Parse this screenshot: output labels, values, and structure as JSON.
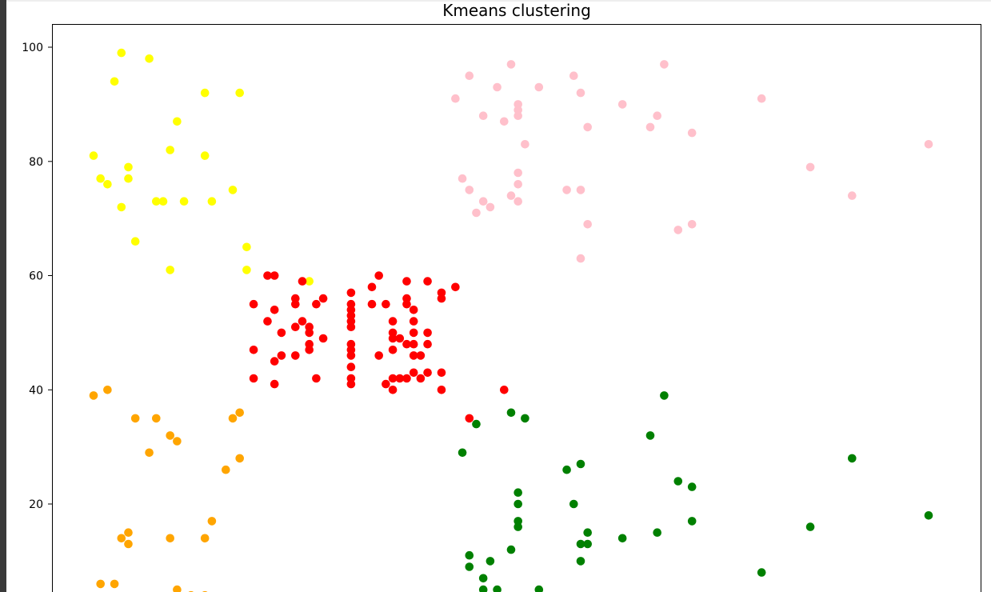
{
  "chart_data": {
    "type": "scatter",
    "title": "Kmeans clustering",
    "xlabel": "",
    "ylabel": "",
    "xlim": [
      12,
      141
    ],
    "ylim": [
      4,
      104
    ],
    "yticks": [
      20,
      40,
      60,
      80,
      100
    ],
    "grid": false,
    "legend": "none",
    "series": [
      {
        "color": "#ffff00",
        "points": [
          [
            17,
            81
          ],
          [
            18,
            77
          ],
          [
            19,
            76
          ],
          [
            20,
            94
          ],
          [
            21,
            99
          ],
          [
            21,
            72
          ],
          [
            22,
            79
          ],
          [
            22,
            77
          ],
          [
            23,
            66
          ],
          [
            25,
            98
          ],
          [
            26,
            73
          ],
          [
            27,
            73
          ],
          [
            28,
            61
          ],
          [
            28,
            82
          ],
          [
            29,
            87
          ],
          [
            30,
            73
          ],
          [
            33,
            92
          ],
          [
            33,
            81
          ],
          [
            34,
            73
          ],
          [
            37,
            75
          ],
          [
            38,
            92
          ],
          [
            39,
            65
          ],
          [
            39,
            61
          ],
          [
            48,
            59
          ]
        ]
      },
      {
        "color": "#ff0000",
        "points": [
          [
            40,
            47
          ],
          [
            40,
            42
          ],
          [
            40,
            55
          ],
          [
            42,
            52
          ],
          [
            42,
            60
          ],
          [
            43,
            60
          ],
          [
            43,
            41
          ],
          [
            43,
            45
          ],
          [
            43,
            54
          ],
          [
            44,
            50
          ],
          [
            44,
            46
          ],
          [
            46,
            51
          ],
          [
            46,
            55
          ],
          [
            46,
            56
          ],
          [
            46,
            46
          ],
          [
            47,
            52
          ],
          [
            47,
            59
          ],
          [
            48,
            47
          ],
          [
            48,
            48
          ],
          [
            48,
            50
          ],
          [
            48,
            51
          ],
          [
            49,
            55
          ],
          [
            49,
            42
          ],
          [
            50,
            49
          ],
          [
            50,
            56
          ],
          [
            54,
            57
          ],
          [
            54,
            55
          ],
          [
            54,
            54
          ],
          [
            54,
            53
          ],
          [
            54,
            52
          ],
          [
            54,
            51
          ],
          [
            54,
            48
          ],
          [
            54,
            47
          ],
          [
            54,
            46
          ],
          [
            54,
            44
          ],
          [
            54,
            42
          ],
          [
            54,
            41
          ],
          [
            57,
            58
          ],
          [
            57,
            55
          ],
          [
            58,
            60
          ],
          [
            58,
            46
          ],
          [
            59,
            55
          ],
          [
            59,
            41
          ],
          [
            60,
            40
          ],
          [
            60,
            42
          ],
          [
            60,
            47
          ],
          [
            60,
            49
          ],
          [
            60,
            50
          ],
          [
            60,
            52
          ],
          [
            61,
            42
          ],
          [
            61,
            49
          ],
          [
            62,
            42
          ],
          [
            62,
            48
          ],
          [
            62,
            55
          ],
          [
            62,
            56
          ],
          [
            62,
            59
          ],
          [
            63,
            54
          ],
          [
            63,
            52
          ],
          [
            63,
            50
          ],
          [
            63,
            48
          ],
          [
            63,
            46
          ],
          [
            63,
            43
          ],
          [
            64,
            46
          ],
          [
            64,
            42
          ],
          [
            65,
            43
          ],
          [
            65,
            48
          ],
          [
            65,
            50
          ],
          [
            65,
            59
          ],
          [
            67,
            57
          ],
          [
            67,
            56
          ],
          [
            67,
            43
          ],
          [
            67,
            40
          ],
          [
            69,
            58
          ],
          [
            71,
            35
          ],
          [
            76,
            40
          ]
        ]
      },
      {
        "color": "#ffc0cb",
        "points": [
          [
            69,
            91
          ],
          [
            70,
            77
          ],
          [
            71,
            95
          ],
          [
            71,
            75
          ],
          [
            72,
            71
          ],
          [
            73,
            88
          ],
          [
            73,
            73
          ],
          [
            74,
            72
          ],
          [
            75,
            93
          ],
          [
            76,
            87
          ],
          [
            77,
            97
          ],
          [
            77,
            74
          ],
          [
            78,
            90
          ],
          [
            78,
            89
          ],
          [
            78,
            88
          ],
          [
            78,
            78
          ],
          [
            78,
            76
          ],
          [
            78,
            73
          ],
          [
            79,
            83
          ],
          [
            81,
            93
          ],
          [
            85,
            75
          ],
          [
            86,
            95
          ],
          [
            87,
            92
          ],
          [
            87,
            75
          ],
          [
            87,
            63
          ],
          [
            88,
            86
          ],
          [
            88,
            69
          ],
          [
            93,
            90
          ],
          [
            97,
            86
          ],
          [
            98,
            88
          ],
          [
            99,
            97
          ],
          [
            101,
            68
          ],
          [
            103,
            85
          ],
          [
            103,
            69
          ],
          [
            113,
            91
          ],
          [
            120,
            79
          ],
          [
            126,
            74
          ],
          [
            137,
            83
          ]
        ]
      },
      {
        "color": "#ffa500",
        "points": [
          [
            17,
            39
          ],
          [
            18,
            6
          ],
          [
            19,
            40
          ],
          [
            20,
            6
          ],
          [
            21,
            14
          ],
          [
            22,
            15
          ],
          [
            22,
            13
          ],
          [
            23,
            35
          ],
          [
            25,
            29
          ],
          [
            26,
            35
          ],
          [
            28,
            32
          ],
          [
            28,
            14
          ],
          [
            29,
            31
          ],
          [
            29,
            5
          ],
          [
            31,
            4
          ],
          [
            33,
            14
          ],
          [
            33,
            4
          ],
          [
            34,
            17
          ],
          [
            36,
            26
          ],
          [
            37,
            35
          ],
          [
            38,
            36
          ],
          [
            38,
            28
          ]
        ]
      },
      {
        "color": "#008000",
        "points": [
          [
            70,
            29
          ],
          [
            71,
            11
          ],
          [
            71,
            9
          ],
          [
            72,
            34
          ],
          [
            73,
            7
          ],
          [
            73,
            5
          ],
          [
            74,
            10
          ],
          [
            75,
            5
          ],
          [
            77,
            12
          ],
          [
            77,
            36
          ],
          [
            78,
            22
          ],
          [
            78,
            20
          ],
          [
            78,
            17
          ],
          [
            78,
            16
          ],
          [
            79,
            35
          ],
          [
            81,
            5
          ],
          [
            85,
            26
          ],
          [
            86,
            20
          ],
          [
            87,
            27
          ],
          [
            87,
            13
          ],
          [
            87,
            10
          ],
          [
            88,
            15
          ],
          [
            88,
            13
          ],
          [
            93,
            14
          ],
          [
            97,
            32
          ],
          [
            98,
            15
          ],
          [
            99,
            39
          ],
          [
            101,
            24
          ],
          [
            103,
            23
          ],
          [
            103,
            17
          ],
          [
            113,
            8
          ],
          [
            120,
            16
          ],
          [
            126,
            28
          ],
          [
            137,
            18
          ]
        ]
      }
    ]
  }
}
